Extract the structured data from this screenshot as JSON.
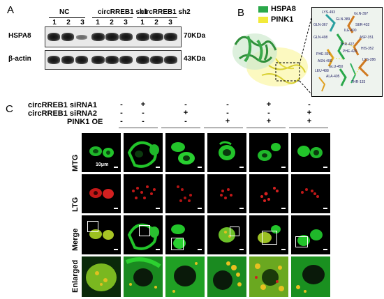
{
  "panels": {
    "a": "A",
    "b": "B",
    "c": "C"
  },
  "blot": {
    "groups": [
      "NC",
      "circRREB1 sh1",
      "circRREB1 sh2"
    ],
    "lanes": [
      "1",
      "2",
      "3",
      "1",
      "2",
      "3",
      "1",
      "2",
      "3"
    ],
    "rows": [
      {
        "protein": "HSPA8",
        "size": "70KDa"
      },
      {
        "protein": "β-actin",
        "size": "43KDa"
      }
    ]
  },
  "structure": {
    "legend": [
      {
        "name": "HSPA8",
        "color": "#2aa84a"
      },
      {
        "name": "PINK1",
        "color": "#f2ea3a"
      }
    ],
    "residues": [
      "LYS-493",
      "GLN-397",
      "GLN-389",
      "GLN-367",
      "SER-432",
      "ILE-490",
      "ASP-351",
      "GLN-498",
      "THR-427",
      "HIS-352",
      "PHE-426",
      "PHE-391",
      "LYS-286",
      "ASN-406",
      "GLU-450",
      "ALA-405",
      "LEU-488",
      "THR-133"
    ]
  },
  "conditions": {
    "labels": [
      "circRREB1 siRNA1",
      "circRREB1 siRNA2",
      "PINK1 OE"
    ],
    "signs": [
      [
        "-",
        "+",
        "-",
        "-",
        "+",
        "-"
      ],
      [
        "-",
        "-",
        "+",
        "-",
        "-",
        "+"
      ],
      [
        "-",
        "-",
        "-",
        "+",
        "+",
        "+"
      ]
    ]
  },
  "microscopy": {
    "rows": [
      "MTG",
      "LTG",
      "Merge",
      "Enlarged"
    ],
    "scale_bar": "10μm",
    "colors": {
      "mtg": "#22c42a",
      "ltg": "#e02020",
      "merge": "#b8c020"
    }
  }
}
